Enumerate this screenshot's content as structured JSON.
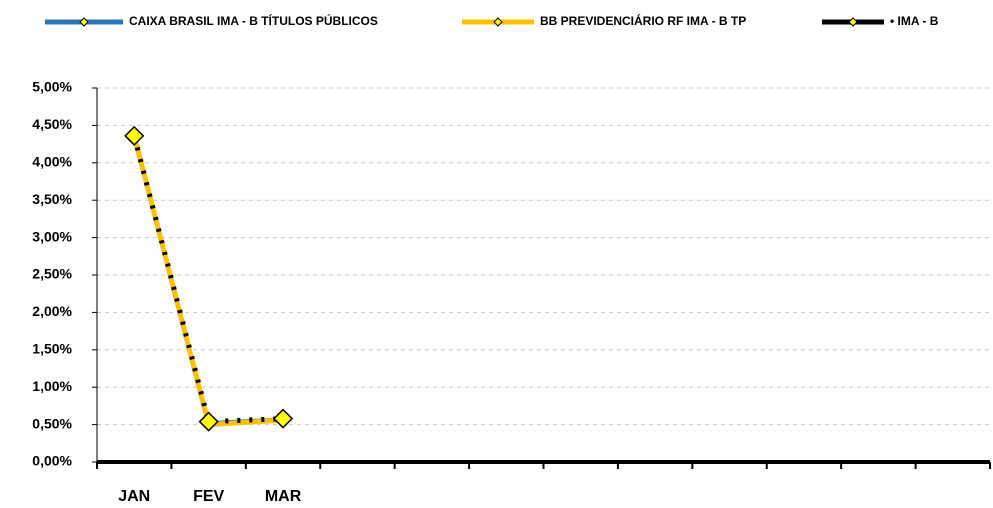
{
  "chart_data": {
    "type": "line",
    "categories": [
      "JAN",
      "FEV",
      "MAR",
      null,
      null,
      null,
      null,
      null,
      null,
      null,
      null,
      null
    ],
    "series": [
      {
        "name": "CAIXA BRASIL IMA - B TÍTULOS PÚBLICOS",
        "color": "#2e75b6",
        "values": [
          4.35,
          0.52,
          0.57,
          null,
          null,
          null,
          null,
          null,
          null,
          null,
          null,
          null
        ]
      },
      {
        "name": "BB PREVIDENCIÁRIO RF IMA - B TP",
        "color": "#ffc000",
        "values": [
          4.36,
          0.5,
          0.56,
          null,
          null,
          null,
          null,
          null,
          null,
          null,
          null,
          null
        ]
      },
      {
        "name": "• IMA - B",
        "color": "#000000",
        "values": [
          4.36,
          0.54,
          0.58,
          null,
          null,
          null,
          null,
          null,
          null,
          null,
          null,
          null
        ]
      }
    ],
    "ylim": [
      0,
      5
    ],
    "yticks": [
      {
        "value": 0,
        "label": "0,00%"
      },
      {
        "value": 0.5,
        "label": "0,50%"
      },
      {
        "value": 1,
        "label": "1,00%"
      },
      {
        "value": 1.5,
        "label": "1,50%"
      },
      {
        "value": 2,
        "label": "2,00%"
      },
      {
        "value": 2.5,
        "label": "2,50%"
      },
      {
        "value": 3,
        "label": "3,00%"
      },
      {
        "value": 3.5,
        "label": "3,50%"
      },
      {
        "value": 4,
        "label": "4,00%"
      },
      {
        "value": 4.5,
        "label": "4,50%"
      },
      {
        "value": 5,
        "label": "5,00%"
      }
    ],
    "grid": true,
    "legend": "top"
  }
}
